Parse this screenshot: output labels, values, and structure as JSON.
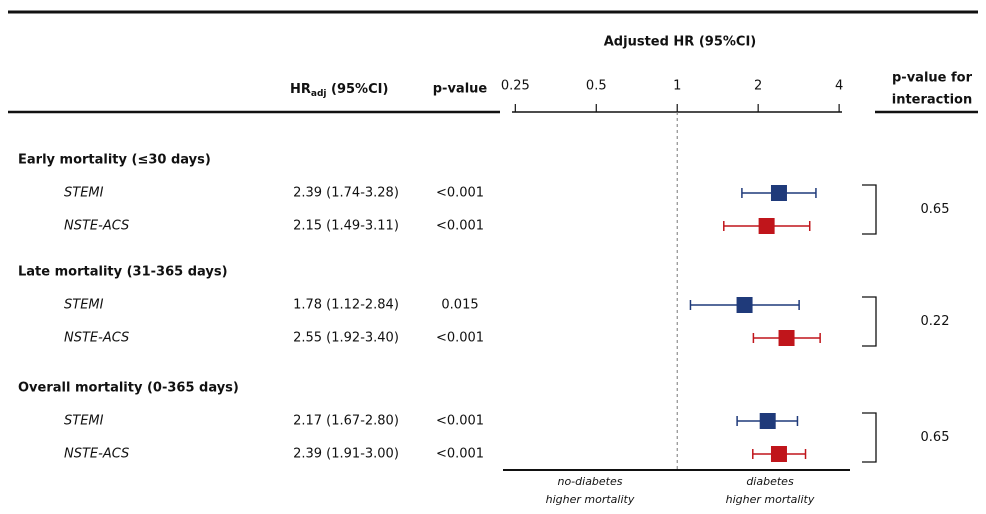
{
  "chart_data": {
    "type": "forest",
    "title": "Adjusted HR (95%CI)",
    "hr_header": {
      "main": "HR",
      "sub": "adj",
      "rest": " (95%CI)"
    },
    "p_header": "p-value",
    "interaction_header": [
      "p-value for",
      "interaction"
    ],
    "log_scale": true,
    "xlim": [
      0.243,
      4.1
    ],
    "xticks": [
      0.25,
      0.5,
      1,
      2,
      4
    ],
    "reference": 1,
    "footnotes": [
      [
        "no-diabetes",
        "higher mortality"
      ],
      [
        "diabetes",
        "higher mortality"
      ]
    ],
    "groups": [
      {
        "label": "Early mortality (≤30 days)",
        "interaction_p": 0.65,
        "rows": [
          {
            "name": "STEMI",
            "color": "#1f3a7a",
            "estimate": 2.39,
            "lower": 1.74,
            "upper": 3.28,
            "estimate_label": "2.39 (1.74-3.28)",
            "p_value": "<0.001"
          },
          {
            "name": "NSTE-ACS",
            "color": "#c0151b",
            "estimate": 2.15,
            "lower": 1.49,
            "upper": 3.11,
            "estimate_label": "2.15 (1.49-3.11)",
            "p_value": "<0.001"
          }
        ]
      },
      {
        "label": "Late mortality (31-365 days)",
        "interaction_p": 0.22,
        "rows": [
          {
            "name": "STEMI",
            "color": "#1f3a7a",
            "estimate": 1.78,
            "lower": 1.12,
            "upper": 2.84,
            "estimate_label": "1.78 (1.12-2.84)",
            "p_value": "0.015"
          },
          {
            "name": "NSTE-ACS",
            "color": "#c0151b",
            "estimate": 2.55,
            "lower": 1.92,
            "upper": 3.4,
            "estimate_label": "2.55 (1.92-3.40)",
            "p_value": "<0.001"
          }
        ]
      },
      {
        "label": "Overall mortality (0-365 days)",
        "interaction_p": 0.65,
        "rows": [
          {
            "name": "STEMI",
            "color": "#1f3a7a",
            "estimate": 2.17,
            "lower": 1.67,
            "upper": 2.8,
            "estimate_label": "2.17 (1.67-2.80)",
            "p_value": "<0.001"
          },
          {
            "name": "NSTE-ACS",
            "color": "#c0151b",
            "estimate": 2.39,
            "lower": 1.91,
            "upper": 3.0,
            "estimate_label": "2.39 (1.91-3.00)",
            "p_value": "<0.001"
          }
        ]
      }
    ]
  }
}
